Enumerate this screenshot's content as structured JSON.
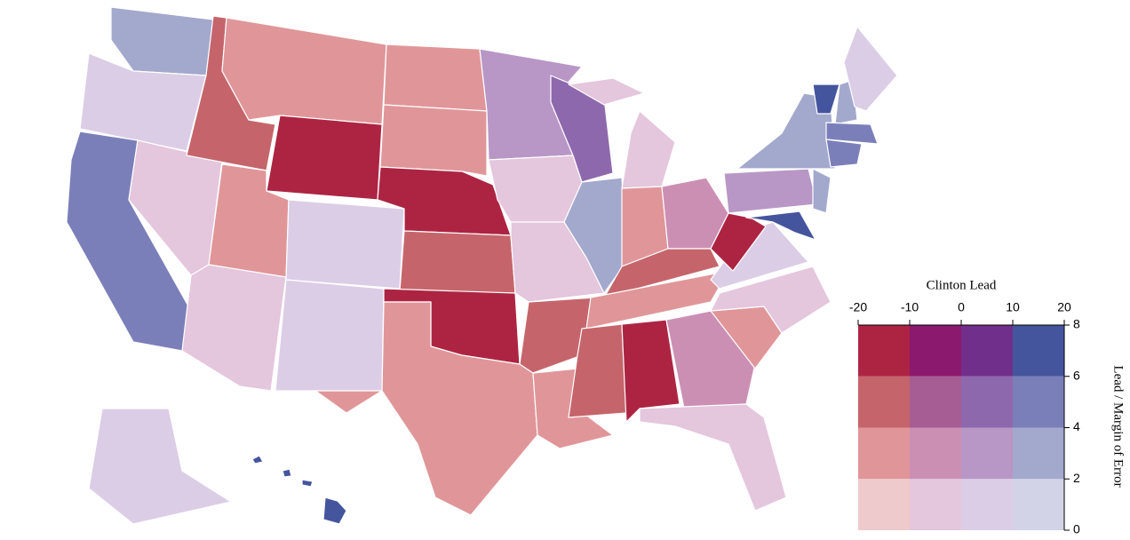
{
  "legend": {
    "title": "Clinton Lead",
    "xlim": [
      -20,
      20
    ],
    "xticks": [
      -20,
      -10,
      0,
      10,
      20
    ],
    "y_label": "Lead / Margin of Error",
    "ylim": [
      0,
      8
    ],
    "yticks": [
      0,
      2,
      4,
      6,
      8
    ],
    "colors": [
      [
        "#efcacc",
        "#e4c6dd",
        "#dccde6",
        "#d3d3e8"
      ],
      [
        "#e09699",
        "#cc8fb4",
        "#b897c6",
        "#a3a8cd"
      ],
      [
        "#c5656b",
        "#a65d94",
        "#8e68ad",
        "#7b7fb9"
      ],
      [
        "#ad2443",
        "#8b1a6e",
        "#702f8a",
        "#44559e"
      ]
    ]
  }
}
